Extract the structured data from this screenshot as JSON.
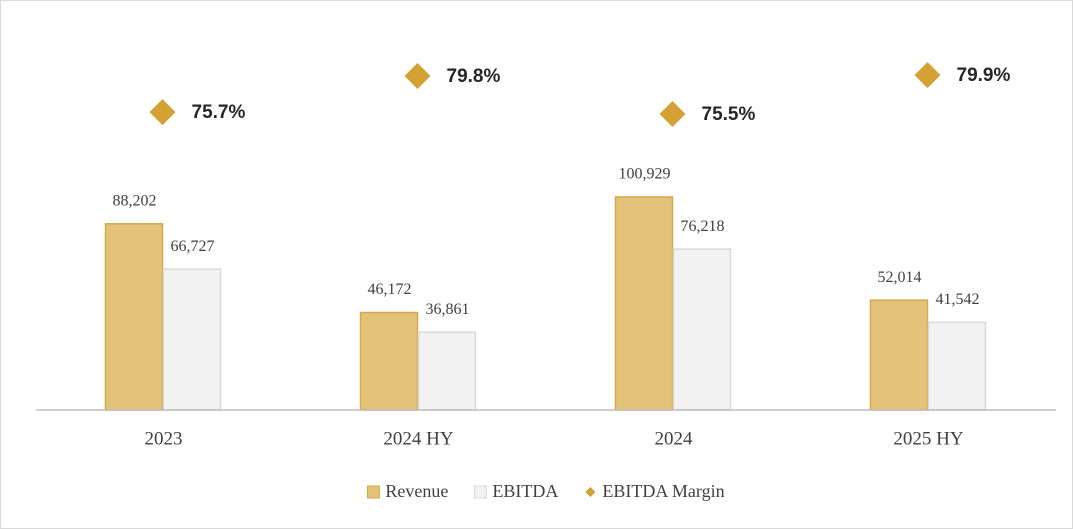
{
  "chart_data": {
    "type": "bar",
    "categories": [
      "2023",
      "2024 HY",
      "2024",
      "2025 HY"
    ],
    "ylim": [
      0,
      180000
    ],
    "y2lim": [
      42,
      85
    ],
    "series": [
      {
        "name": "Revenue",
        "color": "#e3c27a",
        "edgecolor": "#d4a94a",
        "values": [
          88202,
          46172,
          100929,
          52014
        ],
        "value_labels": [
          "88,202",
          "46,172",
          "100,929",
          "52,014"
        ]
      },
      {
        "name": "EBITDA",
        "color": "#f2f2f2",
        "edgecolor": "#d9d9d9",
        "values": [
          66727,
          36861,
          76218,
          41542
        ],
        "value_labels": [
          "66,727",
          "36,861",
          "76,218",
          "41,542"
        ]
      },
      {
        "name": "EBITDA Margin",
        "type": "scatter",
        "marker": "diamond",
        "axis": "y2",
        "color": "#d4a135",
        "values": [
          75.7,
          79.8,
          75.5,
          79.9
        ],
        "value_labels": [
          "75.7%",
          "79.8%",
          "75.5%",
          "79.9%"
        ]
      }
    ],
    "legend": "bottom"
  }
}
